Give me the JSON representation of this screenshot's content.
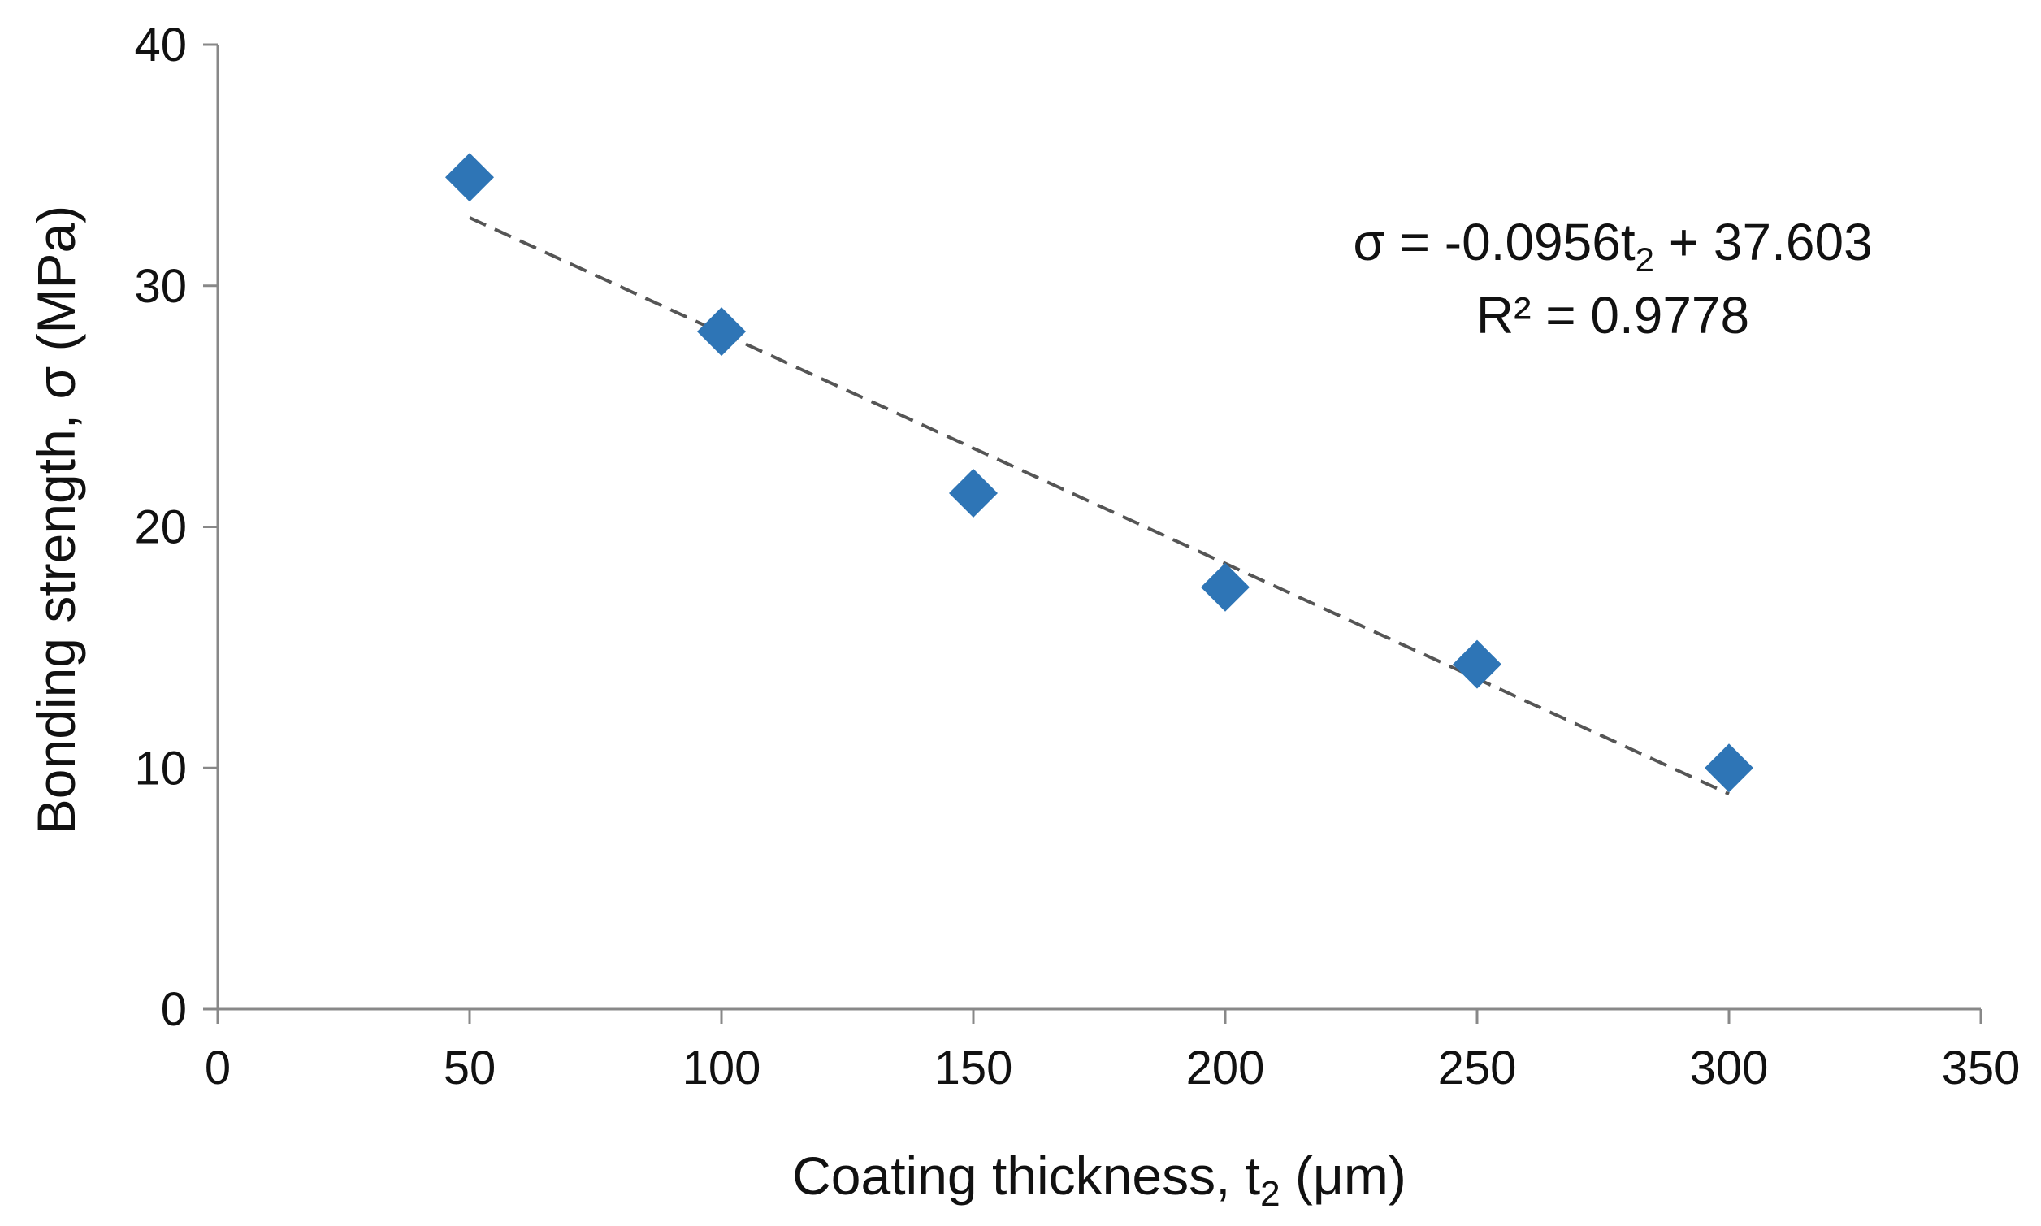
{
  "chart_data": {
    "type": "scatter",
    "title": "",
    "xlabel": "Coating thickness, t",
    "xlabel_sub": "2",
    "xlabel_unit": " (μm)",
    "ylabel": "Bonding strength, σ (MPa)",
    "xlim": [
      0,
      350
    ],
    "ylim": [
      0,
      40
    ],
    "xticks": [
      0,
      50,
      100,
      150,
      200,
      250,
      300,
      350
    ],
    "yticks": [
      0,
      10,
      20,
      30,
      40
    ],
    "series": [
      {
        "name": "Bonding strength",
        "marker": "diamond",
        "color": "#2E75B6",
        "x": [
          50,
          100,
          150,
          200,
          250,
          300
        ],
        "y": [
          34.5,
          28.1,
          21.4,
          17.5,
          14.3,
          10.0
        ]
      }
    ],
    "trendline": {
      "type": "linear",
      "slope": -0.0956,
      "intercept": 37.603,
      "x_range": [
        50,
        300
      ],
      "style": "dashed",
      "color": "#555555"
    },
    "equation": {
      "prefix": "σ = -0.0956t",
      "sub": "2",
      "suffix": " + 37.603",
      "r2": "R² = 0.9778"
    },
    "colors": {
      "axis": "#888888",
      "text": "#111111",
      "background": "#ffffff"
    }
  }
}
